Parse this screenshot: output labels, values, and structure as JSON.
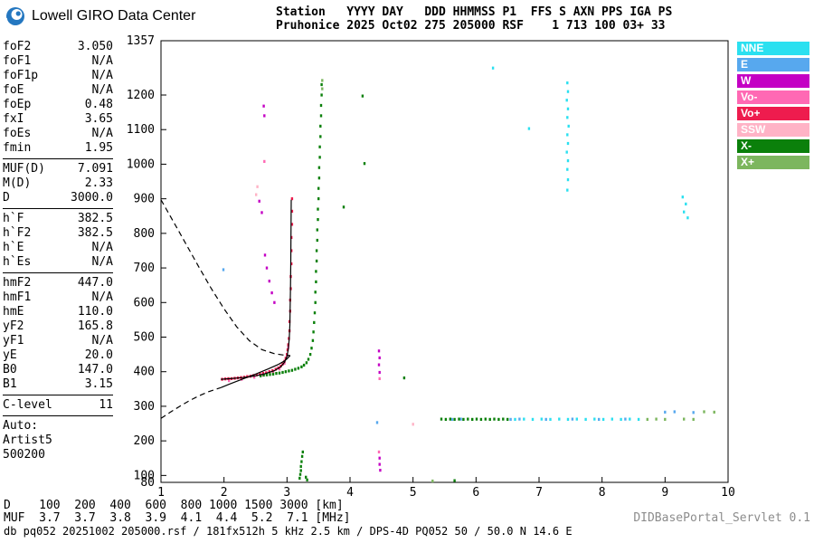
{
  "header": {
    "brand": "Lowell GIRO Data Center",
    "station_line1": "Station   YYYY DAY   DDD HHMMSS P1  FFS S AXN PPS IGA PS",
    "station_line2": "Pruhonice 2025 Oct02 275 205000 RSF    1 713 100 03+ 33"
  },
  "params": {
    "groups": [
      {
        "rows": [
          [
            "foF2",
            "3.050"
          ],
          [
            "foF1",
            "N/A"
          ],
          [
            "foF1p",
            "N/A"
          ],
          [
            "foE",
            "N/A"
          ],
          [
            "foEp",
            "0.48"
          ],
          [
            "fxI",
            "3.65"
          ],
          [
            "foEs",
            "N/A"
          ],
          [
            "fmin",
            "1.95"
          ]
        ]
      },
      {
        "rows": [
          [
            "MUF(D)",
            "7.091"
          ],
          [
            "M(D)",
            "2.33"
          ],
          [
            "D",
            "3000.0"
          ]
        ]
      },
      {
        "rows": [
          [
            "h`F",
            "382.5"
          ],
          [
            "h`F2",
            "382.5"
          ],
          [
            "h`E",
            "N/A"
          ],
          [
            "h`Es",
            "N/A"
          ]
        ]
      },
      {
        "rows": [
          [
            "hmF2",
            "447.0"
          ],
          [
            "hmF1",
            "N/A"
          ],
          [
            "hmE",
            "110.0"
          ],
          [
            "yF2",
            "165.8"
          ],
          [
            "yF1",
            "N/A"
          ],
          [
            "yE",
            "20.0"
          ],
          [
            "B0",
            "147.0"
          ],
          [
            "B1",
            "3.15"
          ]
        ]
      },
      {
        "rows": [
          [
            "C-level",
            "11"
          ]
        ]
      }
    ],
    "auto": {
      "label": "Auto:",
      "lines": [
        "Artist5",
        "500200"
      ]
    }
  },
  "chart_data": {
    "type": "scatter",
    "xlabel": "[MHz]",
    "ylabel": "[km]",
    "x_range": [
      1,
      10
    ],
    "y_range": [
      80,
      1357
    ],
    "x_ticks": [
      1,
      2,
      3,
      4,
      5,
      6,
      7,
      8,
      9,
      10
    ],
    "y_ticks": [
      1357,
      1200,
      1100,
      1000,
      900,
      800,
      700,
      600,
      500,
      400,
      300,
      200,
      100,
      80
    ],
    "legend": [
      {
        "label": "NNE",
        "color": "#2BE0F0"
      },
      {
        "label": "E",
        "color": "#57A8EE"
      },
      {
        "label": "W",
        "color": "#C400C4"
      },
      {
        "label": "Vo-",
        "color": "#FF69B4"
      },
      {
        "label": "Vo+",
        "color": "#EE1C4E"
      },
      {
        "label": "SSW",
        "color": "#FFB3C6"
      },
      {
        "label": "X-",
        "color": "#0B800B"
      },
      {
        "label": "X+",
        "color": "#7CB65E"
      }
    ],
    "series": [
      {
        "name": "NNE",
        "color": "#2BE0F0",
        "points": [
          [
            7.45,
            1235
          ],
          [
            7.46,
            1210
          ],
          [
            7.44,
            1185
          ],
          [
            7.46,
            1160
          ],
          [
            7.45,
            1135
          ],
          [
            7.47,
            1110
          ],
          [
            7.45,
            1085
          ],
          [
            7.46,
            1060
          ],
          [
            7.44,
            1035
          ],
          [
            7.46,
            1010
          ],
          [
            7.45,
            985
          ],
          [
            7.46,
            955
          ],
          [
            7.45,
            925
          ],
          [
            6.62,
            262
          ],
          [
            6.76,
            263
          ],
          [
            6.9,
            262
          ],
          [
            7.04,
            263
          ],
          [
            7.18,
            262
          ],
          [
            7.32,
            263
          ],
          [
            7.46,
            262
          ],
          [
            7.6,
            263
          ],
          [
            7.74,
            262
          ],
          [
            7.88,
            263
          ],
          [
            8.02,
            262
          ],
          [
            8.16,
            263
          ],
          [
            8.3,
            262
          ],
          [
            8.44,
            263
          ],
          [
            8.58,
            262
          ],
          [
            9.28,
            905
          ],
          [
            9.33,
            885
          ],
          [
            9.3,
            862
          ],
          [
            9.36,
            845
          ],
          [
            6.27,
            1278
          ],
          [
            6.84,
            1103
          ]
        ]
      },
      {
        "name": "E",
        "color": "#57A8EE",
        "points": [
          [
            1.99,
            695
          ],
          [
            4.43,
            253
          ],
          [
            5.62,
            262
          ],
          [
            5.76,
            263
          ],
          [
            6.55,
            262
          ],
          [
            6.69,
            263
          ],
          [
            7.11,
            262
          ],
          [
            7.53,
            263
          ],
          [
            7.95,
            262
          ],
          [
            8.37,
            263
          ],
          [
            9.0,
            283
          ],
          [
            9.15,
            284
          ],
          [
            9.45,
            282
          ]
        ]
      },
      {
        "name": "W",
        "color": "#C400C4",
        "points": [
          [
            2.56,
            893
          ],
          [
            2.6,
            860
          ],
          [
            2.65,
            737
          ],
          [
            2.68,
            700
          ],
          [
            2.72,
            662
          ],
          [
            2.76,
            628
          ],
          [
            2.8,
            600
          ],
          [
            2.63,
            1168
          ],
          [
            2.64,
            1140
          ],
          [
            4.46,
            460
          ],
          [
            4.47,
            440
          ],
          [
            4.46,
            420
          ],
          [
            4.47,
            398
          ],
          [
            4.47,
            150
          ],
          [
            4.47,
            132
          ],
          [
            4.48,
            115
          ]
        ]
      },
      {
        "name": "SSW",
        "color": "#FFB3C6",
        "points": [
          [
            2.51,
            912
          ],
          [
            2.53,
            935
          ],
          [
            5.0,
            248
          ]
        ]
      },
      {
        "name": "Vo-",
        "color": "#FF69B4",
        "points": [
          [
            2.08,
            374
          ],
          [
            2.28,
            378
          ],
          [
            2.48,
            384
          ],
          [
            2.62,
            390
          ],
          [
            2.78,
            400
          ],
          [
            2.88,
            408
          ],
          [
            2.96,
            424
          ],
          [
            3.0,
            448
          ],
          [
            3.02,
            470
          ],
          [
            2.64,
            1008
          ],
          [
            4.47,
            380
          ],
          [
            4.46,
            168
          ]
        ]
      },
      {
        "name": "Vo+",
        "color": "#EE1C4E",
        "points": [
          [
            1.97,
            378
          ],
          [
            2.02,
            379
          ],
          [
            2.07,
            380
          ],
          [
            2.12,
            380
          ],
          [
            2.17,
            381
          ],
          [
            2.22,
            382
          ],
          [
            2.27,
            383
          ],
          [
            2.32,
            384
          ],
          [
            2.37,
            386
          ],
          [
            2.42,
            387
          ],
          [
            2.47,
            389
          ],
          [
            2.52,
            391
          ],
          [
            2.57,
            393
          ],
          [
            2.62,
            395
          ],
          [
            2.67,
            397
          ],
          [
            2.72,
            400
          ],
          [
            2.77,
            403
          ],
          [
            2.82,
            407
          ],
          [
            2.86,
            411
          ],
          [
            2.9,
            416
          ],
          [
            2.93,
            422
          ],
          [
            2.96,
            430
          ],
          [
            2.98,
            439
          ],
          [
            3.0,
            450
          ],
          [
            3.01,
            463
          ],
          [
            3.02,
            478
          ],
          [
            3.03,
            496
          ],
          [
            3.04,
            518
          ],
          [
            3.04,
            545
          ],
          [
            3.05,
            575
          ],
          [
            3.05,
            607
          ],
          [
            3.06,
            640
          ],
          [
            3.06,
            675
          ],
          [
            3.07,
            712
          ],
          [
            3.07,
            750
          ],
          [
            3.07,
            788
          ],
          [
            3.08,
            826
          ],
          [
            3.08,
            864
          ],
          [
            3.08,
            900
          ]
        ]
      },
      {
        "name": "X+",
        "color": "#7CB65E",
        "points": [
          [
            8.72,
            262
          ],
          [
            8.86,
            263
          ],
          [
            9.0,
            262
          ],
          [
            9.3,
            263
          ],
          [
            9.45,
            262
          ],
          [
            9.62,
            284
          ],
          [
            9.78,
            283
          ],
          [
            3.56,
            1242
          ],
          [
            3.56,
            1218
          ],
          [
            5.31,
            84
          ]
        ]
      },
      {
        "name": "X-",
        "color": "#0B800B",
        "points": [
          [
            2.58,
            388
          ],
          [
            2.63,
            390
          ],
          [
            2.68,
            391
          ],
          [
            2.73,
            392
          ],
          [
            2.78,
            393
          ],
          [
            2.83,
            395
          ],
          [
            2.88,
            396
          ],
          [
            2.93,
            398
          ],
          [
            2.98,
            400
          ],
          [
            3.03,
            402
          ],
          [
            3.08,
            404
          ],
          [
            3.13,
            407
          ],
          [
            3.18,
            410
          ],
          [
            3.23,
            414
          ],
          [
            3.27,
            419
          ],
          [
            3.31,
            426
          ],
          [
            3.34,
            436
          ],
          [
            3.37,
            450
          ],
          [
            3.39,
            468
          ],
          [
            3.41,
            490
          ],
          [
            3.42,
            515
          ],
          [
            3.43,
            542
          ],
          [
            3.44,
            570
          ],
          [
            3.45,
            600
          ],
          [
            3.45,
            630
          ],
          [
            3.46,
            660
          ],
          [
            3.46,
            690
          ],
          [
            3.47,
            720
          ],
          [
            3.47,
            750
          ],
          [
            3.48,
            780
          ],
          [
            3.48,
            810
          ],
          [
            3.49,
            840
          ],
          [
            3.49,
            870
          ],
          [
            3.5,
            900
          ],
          [
            3.5,
            930
          ],
          [
            3.51,
            960
          ],
          [
            3.51,
            990
          ],
          [
            3.52,
            1020
          ],
          [
            3.52,
            1050
          ],
          [
            3.53,
            1080
          ],
          [
            3.53,
            1110
          ],
          [
            3.54,
            1140
          ],
          [
            3.54,
            1170
          ],
          [
            3.55,
            1200
          ],
          [
            3.55,
            1230
          ],
          [
            3.2,
            92
          ],
          [
            3.21,
            103
          ],
          [
            3.22,
            114
          ],
          [
            3.22,
            126
          ],
          [
            3.23,
            140
          ],
          [
            3.24,
            155
          ],
          [
            3.25,
            168
          ],
          [
            3.3,
            95
          ],
          [
            3.32,
            87
          ],
          [
            5.45,
            263
          ],
          [
            5.52,
            262
          ],
          [
            5.59,
            263
          ],
          [
            5.66,
            262
          ],
          [
            5.73,
            263
          ],
          [
            5.8,
            262
          ],
          [
            5.87,
            263
          ],
          [
            5.94,
            262
          ],
          [
            6.01,
            263
          ],
          [
            6.08,
            262
          ],
          [
            6.15,
            263
          ],
          [
            6.22,
            262
          ],
          [
            6.29,
            263
          ],
          [
            6.36,
            262
          ],
          [
            6.43,
            263
          ],
          [
            6.5,
            262
          ],
          [
            4.2,
            1197
          ],
          [
            4.23,
            1002
          ],
          [
            3.9,
            876
          ],
          [
            4.86,
            382
          ],
          [
            5.66,
            85
          ]
        ]
      }
    ],
    "curves": [
      {
        "name": "bottomside-profile-model",
        "style": "dashed",
        "points": [
          [
            1.0,
            265
          ],
          [
            1.15,
            283
          ],
          [
            1.3,
            300
          ],
          [
            1.45,
            316
          ],
          [
            1.6,
            330
          ],
          [
            1.75,
            342
          ],
          [
            1.9,
            351
          ],
          [
            1.95,
            354
          ]
        ]
      },
      {
        "name": "bottomside-profile",
        "style": "solid",
        "points": [
          [
            1.95,
            354
          ],
          [
            2.1,
            365
          ],
          [
            2.3,
            379
          ],
          [
            2.5,
            393
          ],
          [
            2.7,
            408
          ],
          [
            2.85,
            420
          ],
          [
            2.95,
            430
          ],
          [
            3.0,
            437
          ],
          [
            3.05,
            447
          ]
        ]
      },
      {
        "name": "otrace-fit",
        "style": "solid",
        "points": [
          [
            1.95,
            378
          ],
          [
            2.1,
            380
          ],
          [
            2.3,
            383
          ],
          [
            2.5,
            388
          ],
          [
            2.65,
            394
          ],
          [
            2.8,
            403
          ],
          [
            2.9,
            414
          ],
          [
            2.96,
            427
          ],
          [
            3.0,
            444
          ],
          [
            3.02,
            465
          ],
          [
            3.035,
            495
          ],
          [
            3.045,
            535
          ],
          [
            3.05,
            585
          ],
          [
            3.055,
            645
          ],
          [
            3.06,
            715
          ],
          [
            3.062,
            790
          ],
          [
            3.065,
            860
          ],
          [
            3.067,
            897
          ]
        ]
      },
      {
        "name": "topside-profile",
        "style": "dashed",
        "points": [
          [
            1.0,
            897
          ],
          [
            1.2,
            833
          ],
          [
            1.4,
            768
          ],
          [
            1.6,
            703
          ],
          [
            1.8,
            640
          ],
          [
            2.0,
            582
          ],
          [
            2.2,
            530
          ],
          [
            2.4,
            490
          ],
          [
            2.6,
            464
          ],
          [
            2.8,
            452
          ],
          [
            2.95,
            448
          ],
          [
            3.05,
            447
          ]
        ]
      }
    ]
  },
  "footer": {
    "d_line": "D    100  200  400  600  800 1000 1500 3000 [km]",
    "muf_line": "MUF  3.7  3.7  3.8  3.9  4.1  4.4  5.2  7.1 [MHz]",
    "status_line": "db pq052 20251002 205000.rsf / 181fx512h 5 kHz 2.5 km / DPS-4D PQ052 50 / 50.0 N 14.6 E",
    "servlet_label": "DIDBasePortal_Servlet 0.1"
  }
}
